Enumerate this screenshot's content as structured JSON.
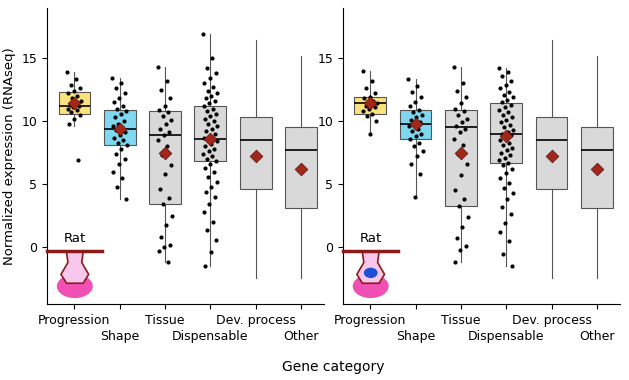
{
  "chart_data": [
    {
      "type": "box",
      "ylabel": "Normalized expression (RNAseq)",
      "xlabel": "Gene category",
      "annotation": "Rat",
      "categories": [
        "Progression",
        "Shape",
        "Tissue",
        "Dispensable",
        "Dev. process",
        "Other"
      ],
      "colors": [
        "#fbe27a",
        "#7fd8ef",
        "#d9d9d9",
        "#d9d9d9",
        "#d9d9d9",
        "#d9d9d9"
      ],
      "ylim": [
        -4.5,
        19
      ],
      "yticks": [
        0,
        5,
        10,
        15
      ],
      "boxes": [
        {
          "whisker_low": 9.6,
          "q1": 10.6,
          "median": 11.2,
          "q3": 12.3,
          "whisker_high": 13.9,
          "mean": 11.4,
          "points": [
            13.9,
            13.3,
            12.9,
            12.6,
            12.4,
            12.2,
            12.0,
            11.8,
            11.6,
            11.5,
            11.3,
            11.2,
            11.1,
            11.0,
            10.9,
            10.7,
            10.5,
            10.2,
            9.8,
            6.9
          ]
        },
        {
          "whisker_low": 3.8,
          "q1": 8.1,
          "median": 9.4,
          "q3": 10.9,
          "whisker_high": 13.4,
          "mean": 9.4,
          "points": [
            13.4,
            13.0,
            12.6,
            12.2,
            11.8,
            11.5,
            11.2,
            11.0,
            10.8,
            10.6,
            10.3,
            10.0,
            9.8,
            9.6,
            9.4,
            9.3,
            9.1,
            8.9,
            8.7,
            8.5,
            8.3,
            8.1,
            7.8,
            7.4,
            7.0,
            6.6,
            6.0,
            5.5,
            4.8,
            3.8
          ]
        },
        {
          "whisker_low": -1.2,
          "q1": 3.4,
          "median": 8.9,
          "q3": 10.8,
          "whisker_high": 14.3,
          "mean": 7.5,
          "points": [
            14.3,
            13.2,
            12.5,
            11.8,
            11.2,
            10.9,
            10.7,
            10.4,
            10.1,
            9.8,
            9.4,
            9.1,
            8.9,
            8.5,
            8.0,
            7.3,
            6.5,
            5.8,
            4.6,
            3.9,
            3.4,
            2.5,
            1.8,
            0.8,
            0.2,
            0.0,
            -0.3,
            -1.2
          ]
        },
        {
          "whisker_low": -1.5,
          "q1": 6.8,
          "median": 8.6,
          "q3": 11.2,
          "whisker_high": 16.9,
          "mean": 8.6,
          "points": [
            16.9,
            15.0,
            14.2,
            13.8,
            13.4,
            13.0,
            12.7,
            12.4,
            12.2,
            12.0,
            11.8,
            11.6,
            11.4,
            11.2,
            11.0,
            10.8,
            10.6,
            10.4,
            10.2,
            10.0,
            9.8,
            9.6,
            9.4,
            9.2,
            9.0,
            8.8,
            8.7,
            8.6,
            8.5,
            8.4,
            8.2,
            8.0,
            7.8,
            7.6,
            7.4,
            7.2,
            7.0,
            6.8,
            6.6,
            6.3,
            6.0,
            5.6,
            5.2,
            4.8,
            4.4,
            4.0,
            3.4,
            2.8,
            2.0,
            1.4,
            0.6,
            -0.4,
            -1.5
          ]
        },
        {
          "whisker_low": -2.4,
          "q1": 4.6,
          "median": 8.5,
          "q3": 10.3,
          "whisker_high": 16.4,
          "mean": 7.2
        },
        {
          "whisker_low": -2.4,
          "q1": 3.1,
          "median": 7.7,
          "q3": 9.5,
          "whisker_high": 15.2,
          "mean": 6.2
        }
      ]
    },
    {
      "type": "box",
      "annotation": "Rat",
      "categories": [
        "Progression",
        "Shape",
        "Tissue",
        "Dispensable",
        "Dev. process",
        "Other"
      ],
      "colors": [
        "#fbe27a",
        "#7fd8ef",
        "#d9d9d9",
        "#d9d9d9",
        "#d9d9d9",
        "#d9d9d9"
      ],
      "ylim": [
        -4.5,
        19
      ],
      "yticks": [
        0,
        5,
        10,
        15
      ],
      "boxes": [
        {
          "whisker_low": 9.0,
          "q1": 10.6,
          "median": 11.4,
          "q3": 11.9,
          "whisker_high": 14.0,
          "mean": 11.4,
          "points": [
            14.0,
            13.2,
            12.6,
            12.2,
            11.9,
            11.8,
            11.6,
            11.5,
            11.4,
            11.3,
            11.2,
            11.1,
            11.0,
            10.8,
            10.6,
            10.4,
            10.0,
            9.0
          ]
        },
        {
          "whisker_low": 4.0,
          "q1": 8.6,
          "median": 9.8,
          "q3": 10.9,
          "whisker_high": 13.3,
          "mean": 9.8,
          "points": [
            13.3,
            12.8,
            12.3,
            11.9,
            11.5,
            11.2,
            10.9,
            10.7,
            10.5,
            10.3,
            10.1,
            9.9,
            9.8,
            9.6,
            9.4,
            9.2,
            9.0,
            8.8,
            8.6,
            8.3,
            8.0,
            7.6,
            7.2,
            6.6,
            5.8,
            4.0
          ]
        },
        {
          "whisker_low": -1.2,
          "q1": 3.3,
          "median": 9.5,
          "q3": 10.9,
          "whisker_high": 14.3,
          "mean": 7.5,
          "points": [
            14.3,
            13.0,
            12.4,
            11.9,
            11.4,
            11.0,
            10.8,
            10.5,
            10.2,
            9.9,
            9.6,
            9.4,
            9.1,
            8.6,
            8.1,
            7.4,
            6.6,
            5.7,
            4.5,
            3.8,
            3.3,
            2.4,
            1.6,
            0.7,
            0.1,
            -0.2,
            -1.2
          ]
        },
        {
          "whisker_low": -1.5,
          "q1": 6.7,
          "median": 9.0,
          "q3": 11.4,
          "whisker_high": 14.2,
          "mean": 8.8,
          "points": [
            14.2,
            13.9,
            13.6,
            13.2,
            12.9,
            12.6,
            12.3,
            12.1,
            11.9,
            11.7,
            11.5,
            11.3,
            11.1,
            10.9,
            10.7,
            10.5,
            10.3,
            10.1,
            9.9,
            9.7,
            9.5,
            9.3,
            9.1,
            9.0,
            8.9,
            8.7,
            8.5,
            8.3,
            8.1,
            7.9,
            7.7,
            7.5,
            7.3,
            7.1,
            6.9,
            6.7,
            6.5,
            6.2,
            5.9,
            5.5,
            5.1,
            4.7,
            4.3,
            3.8,
            3.2,
            2.6,
            1.9,
            1.2,
            0.5,
            -0.5,
            -1.5
          ]
        },
        {
          "whisker_low": -2.4,
          "q1": 4.6,
          "median": 8.5,
          "q3": 10.3,
          "whisker_high": 16.4,
          "mean": 7.2
        },
        {
          "whisker_low": -2.4,
          "q1": 3.1,
          "median": 7.7,
          "q3": 9.5,
          "whisker_high": 15.2,
          "mean": 6.2
        }
      ]
    }
  ]
}
